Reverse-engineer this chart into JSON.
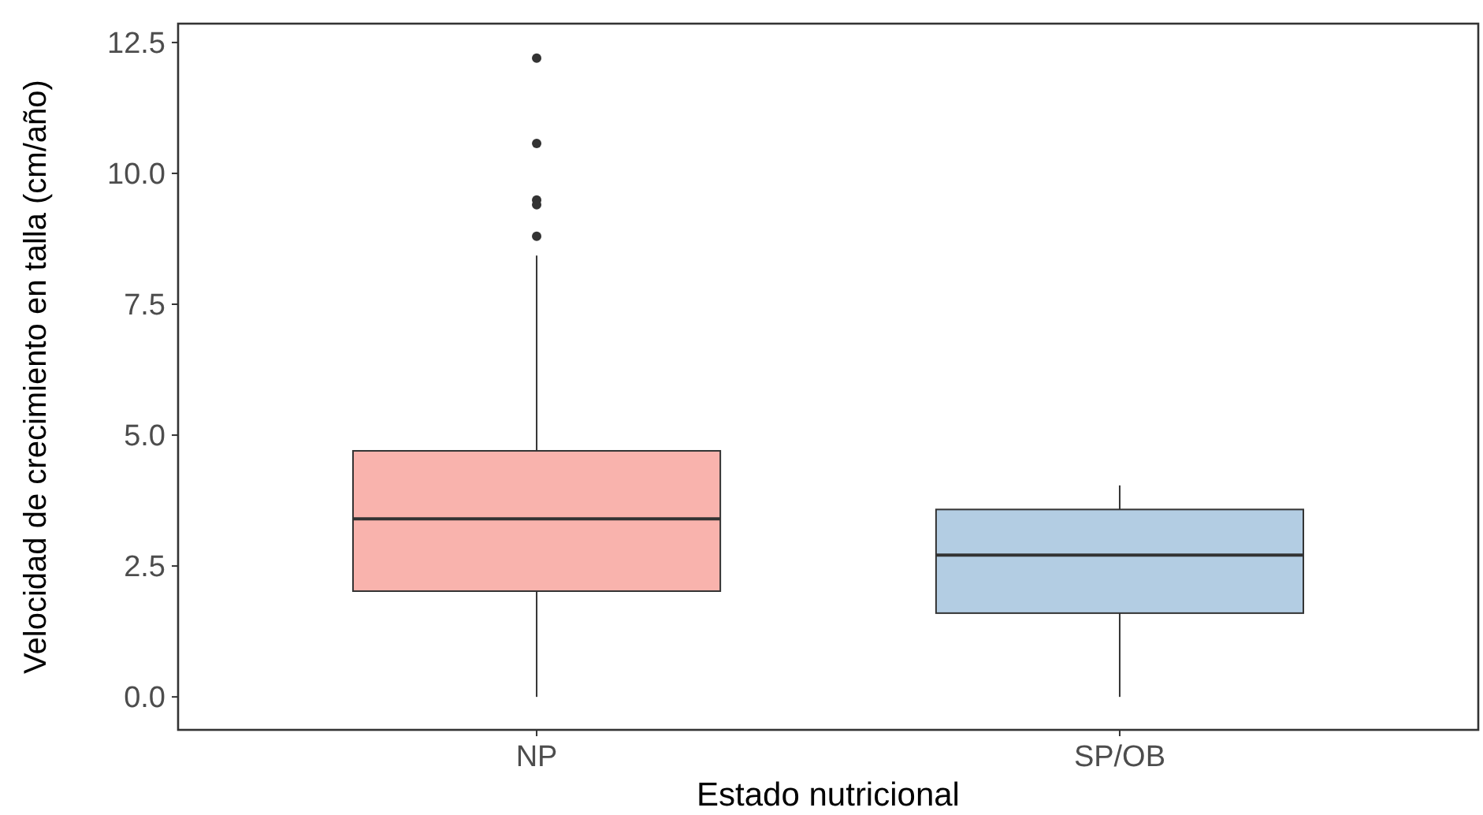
{
  "chart_data": {
    "type": "box",
    "xlabel": "Estado nutricional",
    "ylabel": "Velocidad de crecimiento en talla (cm/año)",
    "categories": [
      "NP",
      "SP/OB"
    ],
    "colors": [
      "#f9b3ad",
      "#b3cde3"
    ],
    "boxes": [
      {
        "low": 0,
        "q1": 2.02,
        "median": 3.4,
        "q3": 4.7,
        "high": 8.43,
        "outliers": [
          12.2,
          10.57,
          9.49,
          9.4,
          8.8
        ]
      },
      {
        "low": 0,
        "q1": 1.6,
        "median": 2.71,
        "q3": 3.58,
        "high": 4.04
      }
    ],
    "ylim": [
      -0.63,
      12.86
    ],
    "yticks": [
      {
        "value": 0,
        "label": "0.0"
      },
      {
        "value": 2.5,
        "label": "2.5"
      },
      {
        "value": 5,
        "label": "5.0"
      },
      {
        "value": 7.5,
        "label": "7.5"
      },
      {
        "value": 10,
        "label": "10.0"
      },
      {
        "value": 12.5,
        "label": "12.5"
      }
    ],
    "grid": false,
    "legend": false
  }
}
